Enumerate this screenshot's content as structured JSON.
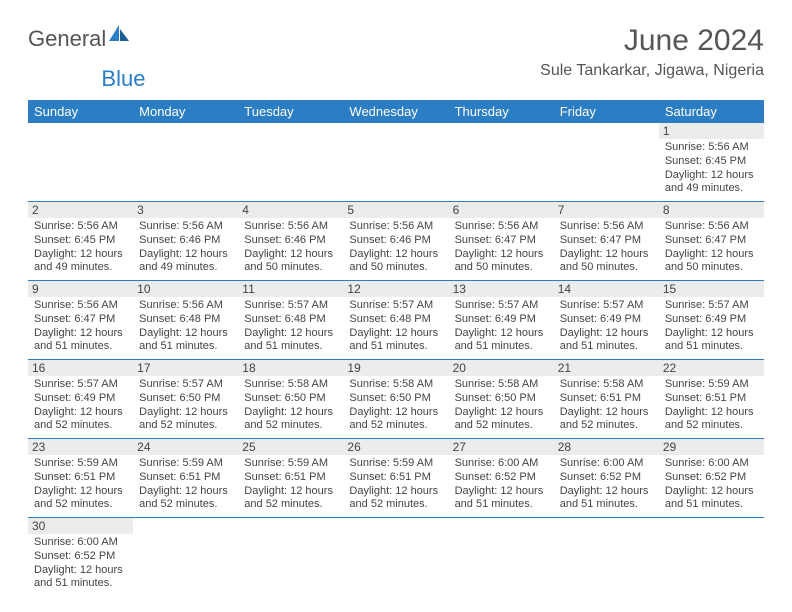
{
  "brand": {
    "part1": "General",
    "part2": "Blue"
  },
  "title": "June 2024",
  "location": "Sule Tankarkar, Jigawa, Nigeria",
  "colors": {
    "accent": "#2b7dc4",
    "background": "#ffffff",
    "daynum_bg": "#ececec"
  },
  "days_of_week": [
    "Sunday",
    "Monday",
    "Tuesday",
    "Wednesday",
    "Thursday",
    "Friday",
    "Saturday"
  ],
  "weeks": [
    [
      null,
      null,
      null,
      null,
      null,
      null,
      {
        "n": "1",
        "sunrise": "Sunrise: 5:56 AM",
        "sunset": "Sunset: 6:45 PM",
        "day1": "Daylight: 12 hours",
        "day2": "and 49 minutes."
      }
    ],
    [
      {
        "n": "2",
        "sunrise": "Sunrise: 5:56 AM",
        "sunset": "Sunset: 6:45 PM",
        "day1": "Daylight: 12 hours",
        "day2": "and 49 minutes."
      },
      {
        "n": "3",
        "sunrise": "Sunrise: 5:56 AM",
        "sunset": "Sunset: 6:46 PM",
        "day1": "Daylight: 12 hours",
        "day2": "and 49 minutes."
      },
      {
        "n": "4",
        "sunrise": "Sunrise: 5:56 AM",
        "sunset": "Sunset: 6:46 PM",
        "day1": "Daylight: 12 hours",
        "day2": "and 50 minutes."
      },
      {
        "n": "5",
        "sunrise": "Sunrise: 5:56 AM",
        "sunset": "Sunset: 6:46 PM",
        "day1": "Daylight: 12 hours",
        "day2": "and 50 minutes."
      },
      {
        "n": "6",
        "sunrise": "Sunrise: 5:56 AM",
        "sunset": "Sunset: 6:47 PM",
        "day1": "Daylight: 12 hours",
        "day2": "and 50 minutes."
      },
      {
        "n": "7",
        "sunrise": "Sunrise: 5:56 AM",
        "sunset": "Sunset: 6:47 PM",
        "day1": "Daylight: 12 hours",
        "day2": "and 50 minutes."
      },
      {
        "n": "8",
        "sunrise": "Sunrise: 5:56 AM",
        "sunset": "Sunset: 6:47 PM",
        "day1": "Daylight: 12 hours",
        "day2": "and 50 minutes."
      }
    ],
    [
      {
        "n": "9",
        "sunrise": "Sunrise: 5:56 AM",
        "sunset": "Sunset: 6:47 PM",
        "day1": "Daylight: 12 hours",
        "day2": "and 51 minutes."
      },
      {
        "n": "10",
        "sunrise": "Sunrise: 5:56 AM",
        "sunset": "Sunset: 6:48 PM",
        "day1": "Daylight: 12 hours",
        "day2": "and 51 minutes."
      },
      {
        "n": "11",
        "sunrise": "Sunrise: 5:57 AM",
        "sunset": "Sunset: 6:48 PM",
        "day1": "Daylight: 12 hours",
        "day2": "and 51 minutes."
      },
      {
        "n": "12",
        "sunrise": "Sunrise: 5:57 AM",
        "sunset": "Sunset: 6:48 PM",
        "day1": "Daylight: 12 hours",
        "day2": "and 51 minutes."
      },
      {
        "n": "13",
        "sunrise": "Sunrise: 5:57 AM",
        "sunset": "Sunset: 6:49 PM",
        "day1": "Daylight: 12 hours",
        "day2": "and 51 minutes."
      },
      {
        "n": "14",
        "sunrise": "Sunrise: 5:57 AM",
        "sunset": "Sunset: 6:49 PM",
        "day1": "Daylight: 12 hours",
        "day2": "and 51 minutes."
      },
      {
        "n": "15",
        "sunrise": "Sunrise: 5:57 AM",
        "sunset": "Sunset: 6:49 PM",
        "day1": "Daylight: 12 hours",
        "day2": "and 51 minutes."
      }
    ],
    [
      {
        "n": "16",
        "sunrise": "Sunrise: 5:57 AM",
        "sunset": "Sunset: 6:49 PM",
        "day1": "Daylight: 12 hours",
        "day2": "and 52 minutes."
      },
      {
        "n": "17",
        "sunrise": "Sunrise: 5:57 AM",
        "sunset": "Sunset: 6:50 PM",
        "day1": "Daylight: 12 hours",
        "day2": "and 52 minutes."
      },
      {
        "n": "18",
        "sunrise": "Sunrise: 5:58 AM",
        "sunset": "Sunset: 6:50 PM",
        "day1": "Daylight: 12 hours",
        "day2": "and 52 minutes."
      },
      {
        "n": "19",
        "sunrise": "Sunrise: 5:58 AM",
        "sunset": "Sunset: 6:50 PM",
        "day1": "Daylight: 12 hours",
        "day2": "and 52 minutes."
      },
      {
        "n": "20",
        "sunrise": "Sunrise: 5:58 AM",
        "sunset": "Sunset: 6:50 PM",
        "day1": "Daylight: 12 hours",
        "day2": "and 52 minutes."
      },
      {
        "n": "21",
        "sunrise": "Sunrise: 5:58 AM",
        "sunset": "Sunset: 6:51 PM",
        "day1": "Daylight: 12 hours",
        "day2": "and 52 minutes."
      },
      {
        "n": "22",
        "sunrise": "Sunrise: 5:59 AM",
        "sunset": "Sunset: 6:51 PM",
        "day1": "Daylight: 12 hours",
        "day2": "and 52 minutes."
      }
    ],
    [
      {
        "n": "23",
        "sunrise": "Sunrise: 5:59 AM",
        "sunset": "Sunset: 6:51 PM",
        "day1": "Daylight: 12 hours",
        "day2": "and 52 minutes."
      },
      {
        "n": "24",
        "sunrise": "Sunrise: 5:59 AM",
        "sunset": "Sunset: 6:51 PM",
        "day1": "Daylight: 12 hours",
        "day2": "and 52 minutes."
      },
      {
        "n": "25",
        "sunrise": "Sunrise: 5:59 AM",
        "sunset": "Sunset: 6:51 PM",
        "day1": "Daylight: 12 hours",
        "day2": "and 52 minutes."
      },
      {
        "n": "26",
        "sunrise": "Sunrise: 5:59 AM",
        "sunset": "Sunset: 6:51 PM",
        "day1": "Daylight: 12 hours",
        "day2": "and 52 minutes."
      },
      {
        "n": "27",
        "sunrise": "Sunrise: 6:00 AM",
        "sunset": "Sunset: 6:52 PM",
        "day1": "Daylight: 12 hours",
        "day2": "and 51 minutes."
      },
      {
        "n": "28",
        "sunrise": "Sunrise: 6:00 AM",
        "sunset": "Sunset: 6:52 PM",
        "day1": "Daylight: 12 hours",
        "day2": "and 51 minutes."
      },
      {
        "n": "29",
        "sunrise": "Sunrise: 6:00 AM",
        "sunset": "Sunset: 6:52 PM",
        "day1": "Daylight: 12 hours",
        "day2": "and 51 minutes."
      }
    ],
    [
      {
        "n": "30",
        "sunrise": "Sunrise: 6:00 AM",
        "sunset": "Sunset: 6:52 PM",
        "day1": "Daylight: 12 hours",
        "day2": "and 51 minutes."
      },
      null,
      null,
      null,
      null,
      null,
      null
    ]
  ]
}
